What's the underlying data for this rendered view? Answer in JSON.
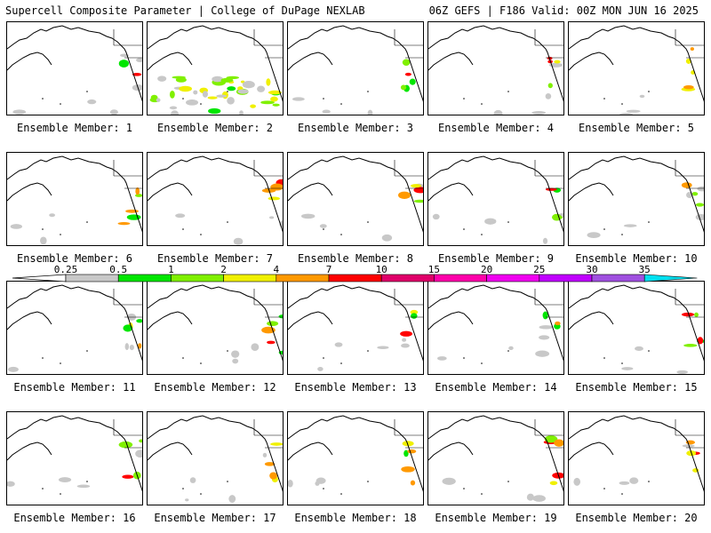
{
  "header": {
    "left_title": "Supercell Composite Parameter | College of DuPage NEXLAB",
    "right_title": "06Z GEFS | F186 Valid: 00Z MON JUN 16 2025"
  },
  "panels": [
    {
      "label": "Ensemble Member: 1"
    },
    {
      "label": "Ensemble Member: 2"
    },
    {
      "label": "Ensemble Member: 3"
    },
    {
      "label": "Ensemble Member: 4"
    },
    {
      "label": "Ensemble Member: 5"
    },
    {
      "label": "Ensemble Member: 6"
    },
    {
      "label": "Ensemble Member: 7"
    },
    {
      "label": "Ensemble Member: 8"
    },
    {
      "label": "Ensemble Member: 9"
    },
    {
      "label": "Ensemble Member: 10"
    },
    {
      "label": "Ensemble Member: 11"
    },
    {
      "label": "Ensemble Member: 12"
    },
    {
      "label": "Ensemble Member: 13"
    },
    {
      "label": "Ensemble Member: 14"
    },
    {
      "label": "Ensemble Member: 15"
    },
    {
      "label": "Ensemble Member: 16"
    },
    {
      "label": "Ensemble Member: 17"
    },
    {
      "label": "Ensemble Member: 18"
    },
    {
      "label": "Ensemble Member: 19"
    },
    {
      "label": "Ensemble Member: 20"
    }
  ],
  "colorbar": {
    "labels": [
      "0.25",
      "0.5",
      "1",
      "2",
      "4",
      "7",
      "10",
      "15",
      "20",
      "25",
      "30",
      "35"
    ],
    "colors": [
      "#c8c8c8",
      "#00e600",
      "#80f000",
      "#f0f000",
      "#ff9900",
      "#ff0000",
      "#e0006a",
      "#ff00aa",
      "#f000f0",
      "#c000ff",
      "#a050e0",
      "#00e0f0"
    ]
  }
}
